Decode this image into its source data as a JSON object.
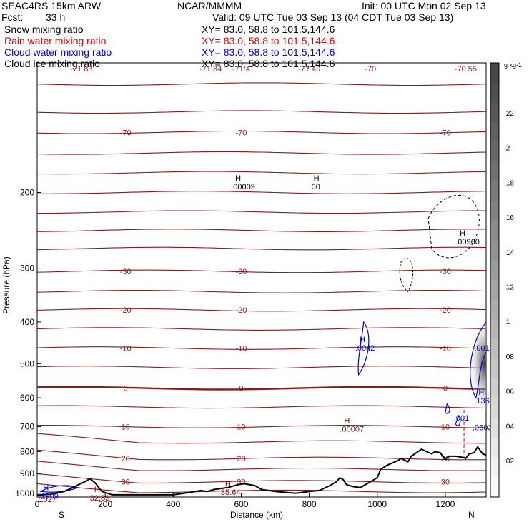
{
  "header": {
    "model": "SEAC4RS 15km ARW",
    "center": "NCAR/MMMM",
    "init": "Init: 00 UTC Mon 02 Sep 13",
    "fcst_label": "Fcst:",
    "fcst_value": "33 h",
    "valid": "Valid: 09 UTC Tue 03 Sep 13 (04 CDT Tue 03 Sep 13)"
  },
  "fields": [
    {
      "name": "Snow mixing ratio",
      "xy": "XY=  83.0, 58.8 to 101.5,144.6",
      "color": "#000000"
    },
    {
      "name": "Rain water mixing ratio",
      "xy": "XY=  83.0, 58.8 to 101.5,144.6",
      "color": "#e00000"
    },
    {
      "name": "Cloud water mixing ratio",
      "xy": "XY=  83.0, 58.8 to 101.5,144.6",
      "color": "#0000e0"
    },
    {
      "name": "Cloud ice mixing ratio",
      "xy": "XY=  83.0, 58.8 to 101.5,144.6",
      "color": "#000000"
    }
  ],
  "chart_data": {
    "type": "line",
    "xlabel": "Distance (km)",
    "ylabel": "Pressure (hPa)",
    "xlim": [
      0,
      1320
    ],
    "ylim": [
      1020,
      100
    ],
    "y_scale": "log-pressure",
    "x_ticks": [
      0,
      200,
      400,
      600,
      800,
      1000,
      1200
    ],
    "y_ticks": [
      200,
      300,
      400,
      500,
      600,
      700,
      800,
      900,
      1000
    ],
    "left_end_label": "S",
    "right_end_label": "N",
    "isotherms": [
      {
        "label": "-70",
        "p": 145
      },
      {
        "label": "-30",
        "p": 305
      },
      {
        "label": "-20",
        "p": 375
      },
      {
        "label": "-10",
        "p": 460
      },
      {
        "label": "0",
        "p": 570
      },
      {
        "label": "10",
        "p": 700
      },
      {
        "label": "20",
        "p": 830
      },
      {
        "label": "30",
        "p": 940
      }
    ],
    "top_labels": [
      "-71.83",
      "-71.84",
      "-71.4",
      "-71.49",
      "-70",
      "-70.55"
    ],
    "maxima": [
      {
        "mark": "H",
        "value": ".00009",
        "x": 570,
        "p": 190,
        "color": "#000000"
      },
      {
        "mark": "H",
        "value": ".00",
        "x": 800,
        "p": 190,
        "color": "#000000"
      },
      {
        "mark": "H",
        "value": ".00960",
        "x": 1230,
        "p": 255,
        "color": "#000000"
      },
      {
        "mark": "H",
        "value": ".0042",
        "x": 935,
        "p": 450,
        "color": "#0000e0"
      },
      {
        "mark": "",
        "value": ".001",
        "x": 1285,
        "p": 450,
        "color": "#0000e0"
      },
      {
        "mark": "H",
        "value": ".1365",
        "x": 1285,
        "p": 598,
        "color": "#0000e0"
      },
      {
        "mark": "",
        "value": ".001",
        "x": 1225,
        "p": 655,
        "color": "#0000e0"
      },
      {
        "mark": "H",
        "value": ".00007",
        "x": 890,
        "p": 695,
        "color": "#b00000"
      },
      {
        "mark": "",
        "value": ".0603",
        "x": 1280,
        "p": 690,
        "color": "#0000e0"
      },
      {
        "mark": "H",
        "value": "32.83",
        "x": 155,
        "p": 1005,
        "color": "#8b0000"
      },
      {
        "mark": "H",
        "value": "35.64",
        "x": 540,
        "p": 975,
        "color": "#8b0000"
      },
      {
        "mark": "H",
        "value": ".1909",
        "x": 5,
        "p": 995,
        "color": "#0000e0"
      },
      {
        "mark": "",
        "value": "1027",
        "x": 5,
        "p": 1012,
        "color": "#8b0000"
      }
    ],
    "terrain": {
      "x": [
        0,
        40,
        80,
        110,
        140,
        155,
        170,
        190,
        220,
        300,
        400,
        450,
        480,
        500,
        520,
        560,
        590,
        610,
        640,
        660,
        700,
        760,
        800,
        830,
        860,
        880,
        890,
        900,
        910,
        930,
        950,
        970,
        990,
        1000,
        1010,
        1030,
        1060,
        1070,
        1090,
        1100,
        1130,
        1160,
        1170,
        1185,
        1200,
        1210,
        1230,
        1250,
        1260,
        1270,
        1285,
        1295,
        1310,
        1320
      ],
      "p": [
        1010,
        1005,
        990,
        965,
        940,
        925,
        945,
        990,
        1008,
        1008,
        1008,
        995,
        985,
        990,
        980,
        970,
        955,
        950,
        960,
        980,
        990,
        1000,
        990,
        985,
        960,
        940,
        920,
        930,
        955,
        965,
        970,
        950,
        930,
        920,
        880,
        860,
        840,
        830,
        845,
        820,
        790,
        810,
        800,
        805,
        835,
        820,
        820,
        825,
        830,
        810,
        805,
        780,
        810,
        815
      ]
    },
    "colorbar": {
      "unit": "g kg-1",
      "ticks": [
        ".22",
        ".2",
        ".18",
        ".16",
        ".14",
        ".12",
        ".1",
        ".08",
        ".06",
        ".04",
        ".02"
      ]
    }
  }
}
